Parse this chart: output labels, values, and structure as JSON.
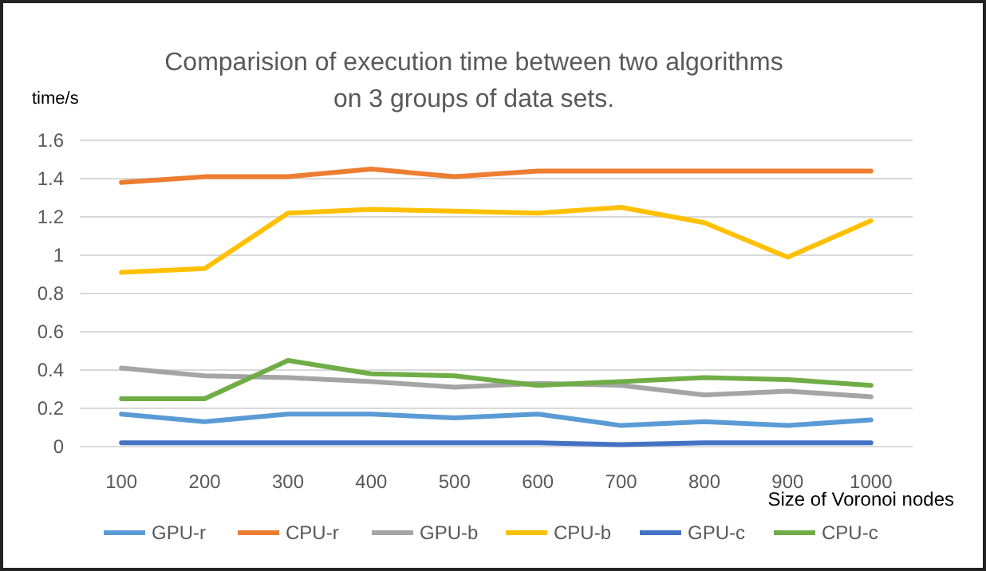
{
  "chart_data": {
    "type": "line",
    "title": "Comparision of execution time between two algorithms\non 3 groups of data sets.",
    "ylabel": "time/s",
    "xlabel": "Size of Voronoi nodes",
    "categories": [
      "100",
      "200",
      "300",
      "400",
      "500",
      "600",
      "700",
      "800",
      "900",
      "1000"
    ],
    "ylim": [
      0,
      1.6
    ],
    "yticks": [
      0,
      0.2,
      0.4,
      0.6,
      0.8,
      {
        "value": 1,
        "label": "1"
      },
      1.2,
      1.4,
      1.6
    ],
    "grid": "y",
    "legend": "bottom",
    "marker": "none",
    "line_style": "solid",
    "series": [
      {
        "name": "GPU-r",
        "color": "#5b9bd5",
        "values": [
          0.17,
          0.13,
          0.17,
          0.17,
          0.15,
          0.17,
          0.11,
          0.13,
          0.11,
          0.14
        ]
      },
      {
        "name": "CPU-r",
        "color": "#ed7d31",
        "values": [
          1.38,
          1.41,
          1.41,
          1.45,
          1.41,
          1.44,
          1.44,
          1.44,
          1.44,
          1.44
        ]
      },
      {
        "name": "GPU-b",
        "color": "#a5a5a5",
        "values": [
          0.41,
          0.37,
          0.36,
          0.34,
          0.31,
          0.33,
          0.32,
          0.27,
          0.29,
          0.26
        ]
      },
      {
        "name": "CPU-b",
        "color": "#ffc000",
        "values": [
          0.91,
          0.93,
          1.22,
          1.24,
          1.23,
          1.22,
          1.25,
          1.17,
          0.99,
          1.18
        ]
      },
      {
        "name": "GPU-c",
        "color": "#4472c4",
        "values": [
          0.02,
          0.02,
          0.02,
          0.02,
          0.02,
          0.02,
          0.01,
          0.02,
          0.02,
          0.02
        ]
      },
      {
        "name": "CPU-c",
        "color": "#70ad47",
        "values": [
          0.25,
          0.25,
          0.45,
          0.38,
          0.37,
          0.32,
          0.34,
          0.36,
          0.35,
          0.32
        ]
      }
    ]
  }
}
